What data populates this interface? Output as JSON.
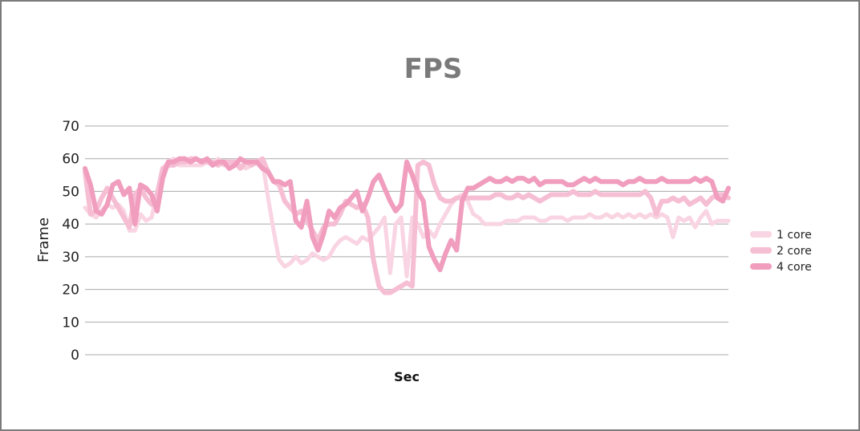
{
  "chart_data": {
    "type": "line",
    "title": "FPS",
    "xlabel": "Sec",
    "ylabel": "Frame",
    "ylim": [
      0,
      70
    ],
    "yticks": [
      0,
      10,
      20,
      30,
      40,
      50,
      60,
      70
    ],
    "grid": true,
    "legend_position": "right",
    "series": [
      {
        "name": "1 core",
        "color": "#f9d4e2",
        "values": [
          45,
          43,
          42,
          44,
          46,
          45,
          46,
          44,
          38,
          38,
          43,
          41,
          42,
          50,
          57,
          59,
          60,
          58,
          58,
          58,
          58,
          58,
          59,
          58,
          60,
          58,
          59,
          58,
          58,
          57,
          58,
          59,
          59,
          48,
          38,
          29,
          27,
          28,
          30,
          28,
          29,
          31,
          30,
          29,
          30,
          33,
          35,
          36,
          35,
          34,
          36,
          35,
          37,
          39,
          42,
          25,
          40,
          42,
          24,
          42,
          40,
          36,
          38,
          36,
          40,
          43,
          46,
          48,
          49,
          47,
          43,
          42,
          40,
          40,
          40,
          40,
          41,
          41,
          41,
          42,
          42,
          42,
          41,
          41,
          42,
          42,
          42,
          41,
          42,
          42,
          42,
          43,
          42,
          42,
          43,
          42,
          43,
          42,
          43,
          42,
          43,
          42,
          43,
          42,
          43,
          42,
          36,
          42,
          41,
          42,
          39,
          42,
          44,
          40,
          41,
          41,
          41
        ]
      },
      {
        "name": "2 core",
        "color": "#f6bed3",
        "values": [
          56,
          43,
          44,
          48,
          51,
          48,
          45,
          42,
          39,
          49,
          51,
          48,
          46,
          49,
          57,
          58,
          58,
          59,
          59,
          60,
          60,
          59,
          59,
          59,
          58,
          59,
          59,
          59,
          57,
          59,
          58,
          59,
          60,
          56,
          53,
          52,
          47,
          45,
          43,
          44,
          41,
          38,
          35,
          39,
          40,
          40,
          43,
          47,
          46,
          45,
          46,
          42,
          29,
          21,
          19,
          19,
          20,
          21,
          22,
          21,
          58,
          59,
          58,
          52,
          48,
          47,
          47,
          48,
          48,
          48,
          48,
          48,
          48,
          48,
          49,
          49,
          48,
          48,
          49,
          48,
          49,
          48,
          47,
          48,
          49,
          49,
          49,
          49,
          50,
          49,
          49,
          49,
          50,
          49,
          49,
          49,
          49,
          49,
          49,
          49,
          49,
          50,
          48,
          43,
          47,
          47,
          48,
          47,
          48,
          46,
          47,
          48,
          46,
          48,
          49,
          49,
          48
        ]
      },
      {
        "name": "4 core",
        "color": "#f09dbe",
        "values": [
          57,
          52,
          44,
          43,
          46,
          52,
          53,
          49,
          51,
          40,
          52,
          51,
          49,
          44,
          54,
          59,
          59,
          60,
          60,
          59,
          60,
          59,
          60,
          58,
          59,
          59,
          57,
          58,
          60,
          59,
          59,
          59,
          57,
          56,
          53,
          53,
          52,
          53,
          41,
          39,
          47,
          36,
          32,
          37,
          44,
          42,
          45,
          46,
          48,
          50,
          44,
          48,
          53,
          55,
          51,
          47,
          44,
          46,
          59,
          55,
          50,
          47,
          33,
          29,
          26,
          31,
          35,
          32,
          47,
          51,
          51,
          52,
          53,
          54,
          53,
          53,
          54,
          53,
          54,
          54,
          53,
          54,
          52,
          53,
          53,
          53,
          53,
          52,
          52,
          53,
          54,
          53,
          54,
          53,
          53,
          53,
          53,
          52,
          53,
          53,
          54,
          53,
          53,
          53,
          54,
          53,
          53,
          53,
          53,
          53,
          54,
          53,
          54,
          53,
          48,
          47,
          51
        ]
      }
    ]
  }
}
